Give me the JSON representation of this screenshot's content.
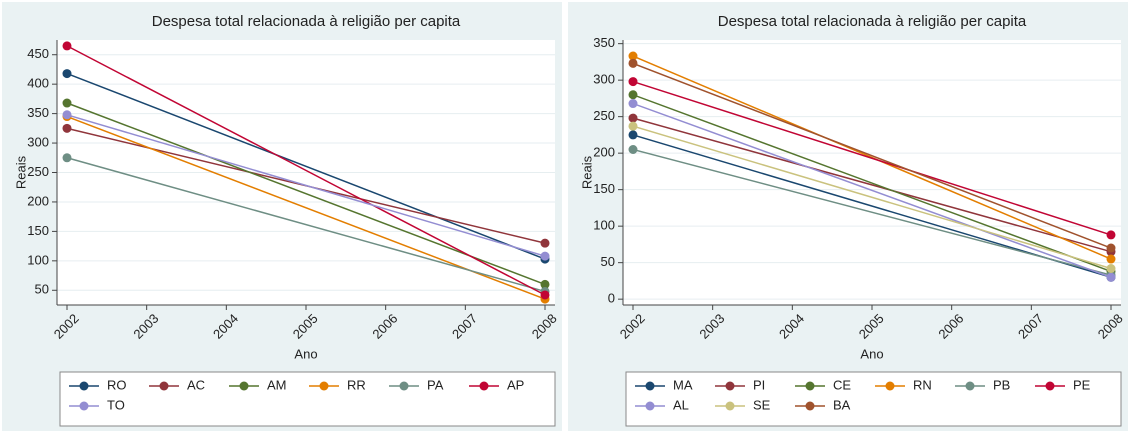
{
  "chart_data": [
    {
      "type": "line",
      "title": "Despesa total relacionada à religião per capita",
      "x_label": "Ano",
      "y_label": "Reais",
      "x": [
        2002,
        2008
      ],
      "xlim": [
        2002,
        2008
      ],
      "xticks": [
        2002,
        2003,
        2004,
        2005,
        2006,
        2007,
        2008
      ],
      "ylim": [
        25,
        475
      ],
      "yticks": [
        50,
        100,
        150,
        200,
        250,
        300,
        350,
        400,
        450
      ],
      "grid": true,
      "legend": "bottom",
      "series": [
        {
          "name": "RO",
          "color": "#1a476f",
          "values": [
            418,
            103
          ]
        },
        {
          "name": "AC",
          "color": "#90353b",
          "values": [
            325,
            130
          ]
        },
        {
          "name": "AM",
          "color": "#55752f",
          "values": [
            368,
            60
          ]
        },
        {
          "name": "RR",
          "color": "#e37e00",
          "values": [
            345,
            35
          ]
        },
        {
          "name": "PA",
          "color": "#6e8e84",
          "values": [
            275,
            48
          ]
        },
        {
          "name": "AP",
          "color": "#c10534",
          "values": [
            465,
            42
          ]
        },
        {
          "name": "TO",
          "color": "#938dd2",
          "values": [
            348,
            108
          ]
        }
      ]
    },
    {
      "type": "line",
      "title": "Despesa total relacionada à religião per capita",
      "x_label": "Ano",
      "y_label": "Reais",
      "x": [
        2002,
        2008
      ],
      "xlim": [
        2002,
        2008
      ],
      "xticks": [
        2002,
        2003,
        2004,
        2005,
        2006,
        2007,
        2008
      ],
      "ylim": [
        -8,
        355
      ],
      "yticks": [
        0,
        50,
        100,
        150,
        200,
        250,
        300,
        350
      ],
      "grid": true,
      "legend": "bottom",
      "series": [
        {
          "name": "MA",
          "color": "#1a476f",
          "values": [
            225,
            30
          ]
        },
        {
          "name": "PI",
          "color": "#90353b",
          "values": [
            248,
            65
          ]
        },
        {
          "name": "CE",
          "color": "#55752f",
          "values": [
            280,
            38
          ]
        },
        {
          "name": "RN",
          "color": "#e37e00",
          "values": [
            333,
            55
          ]
        },
        {
          "name": "PB",
          "color": "#6e8e84",
          "values": [
            205,
            33
          ]
        },
        {
          "name": "PE",
          "color": "#c10534",
          "values": [
            298,
            88
          ]
        },
        {
          "name": "AL",
          "color": "#938dd2",
          "values": [
            268,
            30
          ]
        },
        {
          "name": "SE",
          "color": "#cac27e",
          "values": [
            237,
            42
          ]
        },
        {
          "name": "BA",
          "color": "#a0522d",
          "values": [
            323,
            70
          ]
        }
      ]
    }
  ]
}
